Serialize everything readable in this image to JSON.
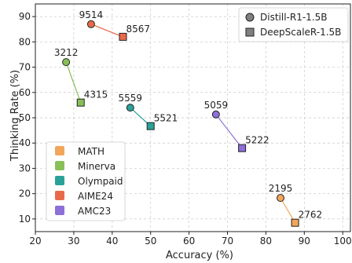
{
  "chart_data": {
    "type": "scatter",
    "title": "",
    "xlabel": "Accuracy (%)",
    "ylabel": "Thinking Rate (%)",
    "xlim": [
      20,
      102
    ],
    "ylim": [
      5,
      95
    ],
    "xticks": [
      20,
      30,
      40,
      50,
      60,
      70,
      80,
      90,
      100
    ],
    "yticks": [
      10,
      20,
      30,
      40,
      50,
      60,
      70,
      80,
      90
    ],
    "grid": true,
    "model_legend": {
      "placement": "top-right",
      "entries": [
        {
          "name": "Distill-R1-1.5B",
          "marker": "circle"
        },
        {
          "name": "DeepScaleR-1.5B",
          "marker": "square"
        }
      ]
    },
    "dataset_legend": {
      "placement": "bottom-left",
      "entries": [
        {
          "name": "MATH",
          "color": "#f2a65a"
        },
        {
          "name": "Minerva",
          "color": "#88c057"
        },
        {
          "name": "Olympaid",
          "color": "#2aa198"
        },
        {
          "name": "AIME24",
          "color": "#e8694a"
        },
        {
          "name": "AMC23",
          "color": "#8e6fd8"
        }
      ]
    },
    "series": [
      {
        "name": "MATH",
        "color": "#f2a65a",
        "distill": {
          "x": 83.8,
          "y": 18.3,
          "label": "2195"
        },
        "deepscaler": {
          "x": 87.6,
          "y": 8.5,
          "label": "2762"
        }
      },
      {
        "name": "Minerva",
        "color": "#88c057",
        "distill": {
          "x": 28.0,
          "y": 72.0,
          "label": "3212"
        },
        "deepscaler": {
          "x": 31.8,
          "y": 56.0,
          "label": "4315"
        }
      },
      {
        "name": "Olympaid",
        "color": "#2aa198",
        "distill": {
          "x": 44.7,
          "y": 54.0,
          "label": "5559"
        },
        "deepscaler": {
          "x": 50.0,
          "y": 46.7,
          "label": "5521"
        }
      },
      {
        "name": "AIME24",
        "color": "#e8694a",
        "distill": {
          "x": 34.5,
          "y": 87.0,
          "label": "9514"
        },
        "deepscaler": {
          "x": 42.8,
          "y": 82.0,
          "label": "8567"
        }
      },
      {
        "name": "AMC23",
        "color": "#8e6fd8",
        "distill": {
          "x": 67.0,
          "y": 51.3,
          "label": "5059"
        },
        "deepscaler": {
          "x": 73.8,
          "y": 38.0,
          "label": "5222"
        }
      }
    ]
  }
}
